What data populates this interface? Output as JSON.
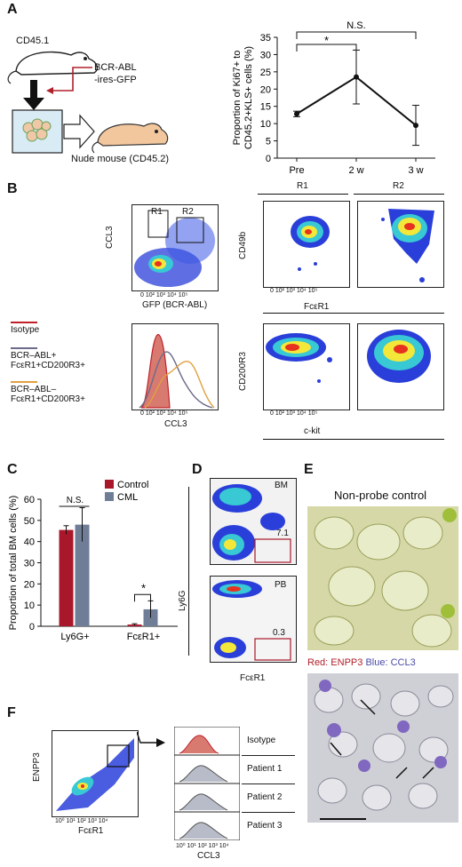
{
  "panels": {
    "A": {
      "letter": "A",
      "schematic": {
        "donor": "CD45.1",
        "vector_line1": "BCR-ABL",
        "vector_line2": "-ires-GFP",
        "recipient": "Nude mouse (CD45.2)"
      },
      "chart_data": {
        "type": "line",
        "categories": [
          "Pre",
          "2 w",
          "3 w"
        ],
        "values": [
          12.8,
          23.5,
          9.5
        ],
        "errors": [
          0.8,
          7.8,
          5.8
        ],
        "ylabel_line1": "Proportion of Ki67+ to",
        "ylabel_line2": "CD45.2+KLS+ cells (%)",
        "ylim": [
          0,
          35
        ],
        "yticks": [
          "0",
          "5",
          "10",
          "15",
          "20",
          "25",
          "30",
          "35"
        ],
        "annotations": {
          "sig": "*",
          "ns": "N.S."
        }
      }
    },
    "B": {
      "letter": "B",
      "gating": {
        "xlabel": "GFP (BCR-ABL)",
        "ylabel": "CCL3",
        "gates": [
          "R1",
          "R2"
        ]
      },
      "columns": [
        "R1",
        "R2"
      ],
      "row1": {
        "ylabel": "CD49b",
        "xlabel": "FcεR1"
      },
      "row2": {
        "ylabel": "CD200R3",
        "xlabel": "c-kit"
      },
      "histogram": {
        "xlabel": "CCL3"
      },
      "legend": [
        {
          "text": "Isotype",
          "color": "#c0202a"
        },
        {
          "text": "BCR–ABL+\nFcεR1+CD200R3+",
          "color": "#6b6b8a"
        },
        {
          "text": "BCR–ABL–\nFcεR1+CD200R3+",
          "color": "#e0a040"
        }
      ],
      "tick_labels": [
        "0",
        "10²",
        "10³",
        "10⁴",
        "10⁵"
      ]
    },
    "C": {
      "letter": "C",
      "chart_data": {
        "type": "bar",
        "categories": [
          "Ly6G+",
          "FcεR1+"
        ],
        "series": [
          {
            "name": "Control",
            "values": [
              45.5,
              0.8
            ],
            "errors": [
              2,
              0.4
            ],
            "color": "#a8172a"
          },
          {
            "name": "CML",
            "values": [
              48,
              8
            ],
            "errors": [
              8,
              4
            ],
            "color": "#6f7d96"
          }
        ],
        "ylabel": "Proportion of total BM cells (%)",
        "ylim": [
          0,
          60
        ],
        "yticks": [
          "0",
          "10",
          "20",
          "30",
          "40",
          "50",
          "60"
        ],
        "annotations": {
          "ns": "N.S.",
          "sig": "*"
        }
      }
    },
    "D": {
      "letter": "D",
      "plots": [
        {
          "tissue": "BM",
          "pct": "7.1"
        },
        {
          "tissue": "PB",
          "pct": "0.3"
        }
      ],
      "xlabel": "FcεR1",
      "ylabel": "Ly6G"
    },
    "E": {
      "letter": "E",
      "top_title": "Non-probe control",
      "bottom_title_red": "Red: ENPP3",
      "bottom_title_blue": "Blue: CCL3"
    },
    "F": {
      "letter": "F",
      "scatter": {
        "xlabel": "FcεR1",
        "ylabel": "ENPP3"
      },
      "hist_xlabel": "CCL3",
      "rows": [
        "Isotype",
        "Patient 1",
        "Patient 2",
        "Patient 3"
      ]
    }
  }
}
